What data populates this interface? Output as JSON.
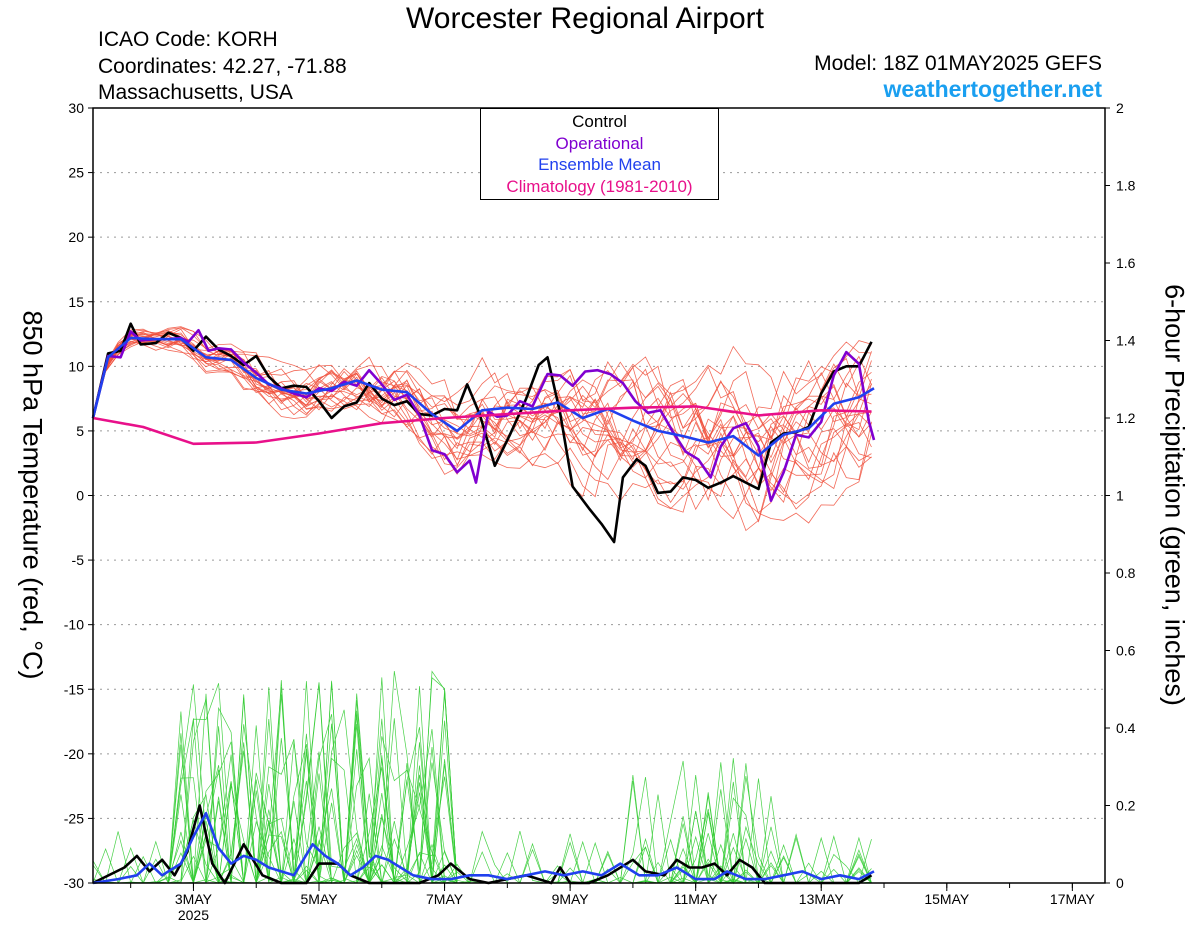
{
  "header": {
    "title": "Worcester Regional Airport",
    "icao": "ICAO Code: KORH",
    "coordinates": "Coordinates: 42.27, -71.88",
    "region": "Massachusetts, USA",
    "model": "Model: 18Z 01MAY2025 GEFS",
    "site": "weathertogether.net"
  },
  "colors": {
    "control": "#000000",
    "operational": "#8000d0",
    "ensemble_mean": "#2040ee",
    "climatology": "#e8108a",
    "members_temp": "#f0503c",
    "members_precip": "#33cc33",
    "site": "#1a9ff0"
  },
  "chart_data": {
    "type": "line",
    "title": "Worcester Regional Airport",
    "xlabel": "",
    "ylabel": "850 hPa Temperature (red, °C)",
    "y2label": "6-hour Precipitation (green, inches)",
    "x_ticks": [
      {
        "t": 0.8,
        "label": "3MAY",
        "sub": "2025"
      },
      {
        "t": 1.8,
        "label": "5MAY"
      },
      {
        "t": 2.8,
        "label": "7MAY"
      },
      {
        "t": 3.8,
        "label": "9MAY"
      },
      {
        "t": 4.8,
        "label": "11MAY"
      },
      {
        "t": 5.8,
        "label": "13MAY"
      },
      {
        "t": 6.8,
        "label": "15MAY"
      },
      {
        "t": 7.8,
        "label": "17MAY"
      }
    ],
    "x_range": [
      0,
      8.06
    ],
    "y_ticks": [
      30,
      25,
      20,
      15,
      10,
      5,
      0,
      -5,
      -10,
      -15,
      -20,
      -25,
      -30
    ],
    "ylim": [
      -30,
      30
    ],
    "y2_ticks": [
      2,
      1.8,
      1.6,
      1.4,
      1.2,
      1,
      0.8,
      0.6,
      0.4,
      0.2,
      0
    ],
    "y2lim": [
      0,
      2
    ],
    "grid": "dotted horizontal",
    "legend": {
      "position": "top-center",
      "entries": [
        {
          "label": "Control",
          "color": "#000000"
        },
        {
          "label": "Operational",
          "color": "#8000d0"
        },
        {
          "label": "Ensemble Mean",
          "color": "#2040ee"
        },
        {
          "label": "Climatology (1981-2010)",
          "color": "#e8108a"
        }
      ]
    },
    "series": [
      {
        "name": "Control",
        "axis": "temp",
        "color": "#000000",
        "points": [
          [
            0.0,
            6
          ],
          [
            0.12,
            11
          ],
          [
            0.22,
            11.2
          ],
          [
            0.3,
            13.3
          ],
          [
            0.38,
            11.7
          ],
          [
            0.5,
            11.8
          ],
          [
            0.6,
            12.6
          ],
          [
            0.7,
            12.2
          ],
          [
            0.8,
            11.2
          ],
          [
            0.9,
            12.3
          ],
          [
            1.0,
            11.3
          ],
          [
            1.1,
            10.8
          ],
          [
            1.2,
            10.1
          ],
          [
            1.3,
            10.8
          ],
          [
            1.4,
            9.2
          ],
          [
            1.5,
            8.3
          ],
          [
            1.6,
            8.5
          ],
          [
            1.7,
            8.4
          ],
          [
            1.8,
            7.3
          ],
          [
            1.9,
            6
          ],
          [
            2.0,
            6.9
          ],
          [
            2.1,
            7.2
          ],
          [
            2.2,
            8.7
          ],
          [
            2.3,
            7.5
          ],
          [
            2.4,
            7
          ],
          [
            2.5,
            7.3
          ],
          [
            2.6,
            6.3
          ],
          [
            2.7,
            6.2
          ],
          [
            2.8,
            6.7
          ],
          [
            2.9,
            6.6
          ],
          [
            2.98,
            8.6
          ],
          [
            3.08,
            6.3
          ],
          [
            3.2,
            2.3
          ],
          [
            3.32,
            4.7
          ],
          [
            3.45,
            7.5
          ],
          [
            3.55,
            10.1
          ],
          [
            3.62,
            10.7
          ],
          [
            3.72,
            6.4
          ],
          [
            3.82,
            0.7
          ],
          [
            3.95,
            -1
          ],
          [
            4.05,
            -2.2
          ],
          [
            4.15,
            -3.6
          ],
          [
            4.22,
            1.4
          ],
          [
            4.33,
            2.8
          ],
          [
            4.4,
            2.3
          ],
          [
            4.5,
            0.2
          ],
          [
            4.6,
            0.3
          ],
          [
            4.7,
            1.4
          ],
          [
            4.8,
            1.2
          ],
          [
            4.9,
            0.6
          ],
          [
            5.0,
            1
          ],
          [
            5.1,
            1.5
          ],
          [
            5.2,
            1
          ],
          [
            5.3,
            0.5
          ],
          [
            5.4,
            4.1
          ],
          [
            5.5,
            4.8
          ],
          [
            5.6,
            4.9
          ],
          [
            5.7,
            5.3
          ],
          [
            5.8,
            7.9
          ],
          [
            5.9,
            9.6
          ],
          [
            6.0,
            10
          ],
          [
            6.1,
            10
          ],
          [
            6.2,
            11.9
          ]
        ]
      },
      {
        "name": "Operational",
        "axis": "temp",
        "color": "#8000d0",
        "points": [
          [
            0.0,
            6
          ],
          [
            0.12,
            10.8
          ],
          [
            0.22,
            10.7
          ],
          [
            0.3,
            12.7
          ],
          [
            0.38,
            12
          ],
          [
            0.5,
            12.1
          ],
          [
            0.6,
            12.1
          ],
          [
            0.7,
            12.2
          ],
          [
            0.76,
            11.9
          ],
          [
            0.84,
            12.8
          ],
          [
            0.92,
            11.2
          ],
          [
            1.0,
            11.4
          ],
          [
            1.1,
            11.3
          ],
          [
            1.2,
            10.3
          ],
          [
            1.3,
            9.5
          ],
          [
            1.4,
            8.6
          ],
          [
            1.5,
            8.3
          ],
          [
            1.6,
            7.9
          ],
          [
            1.7,
            7.6
          ],
          [
            1.8,
            8.3
          ],
          [
            1.9,
            8.1
          ],
          [
            2.0,
            8.8
          ],
          [
            2.1,
            8.5
          ],
          [
            2.2,
            9.7
          ],
          [
            2.3,
            8.6
          ],
          [
            2.4,
            7.4
          ],
          [
            2.5,
            7.8
          ],
          [
            2.6,
            6.2
          ],
          [
            2.7,
            3.5
          ],
          [
            2.8,
            3.2
          ],
          [
            2.9,
            1.8
          ],
          [
            3.0,
            2.7
          ],
          [
            3.05,
            1
          ],
          [
            3.15,
            6.5
          ],
          [
            3.22,
            6.1
          ],
          [
            3.3,
            6.2
          ],
          [
            3.4,
            7.3
          ],
          [
            3.5,
            6.9
          ],
          [
            3.62,
            9.4
          ],
          [
            3.72,
            9.3
          ],
          [
            3.82,
            8.5
          ],
          [
            3.92,
            9.6
          ],
          [
            4.02,
            9.7
          ],
          [
            4.12,
            9.4
          ],
          [
            4.22,
            8.7
          ],
          [
            4.32,
            7.3
          ],
          [
            4.42,
            6.4
          ],
          [
            4.52,
            6.6
          ],
          [
            4.62,
            4.9
          ],
          [
            4.72,
            3.4
          ],
          [
            4.82,
            2.8
          ],
          [
            4.92,
            1.4
          ],
          [
            5.0,
            3.8
          ],
          [
            5.1,
            5.2
          ],
          [
            5.2,
            5.6
          ],
          [
            5.3,
            3.8
          ],
          [
            5.4,
            -0.4
          ],
          [
            5.5,
            1.8
          ],
          [
            5.6,
            4.7
          ],
          [
            5.7,
            4.5
          ],
          [
            5.8,
            5.7
          ],
          [
            5.9,
            9.3
          ],
          [
            6.0,
            11.1
          ],
          [
            6.1,
            10.2
          ],
          [
            6.18,
            5.7
          ],
          [
            6.22,
            4.3
          ]
        ]
      },
      {
        "name": "Ensemble Mean",
        "axis": "temp",
        "color": "#2040ee",
        "points": [
          [
            0.0,
            6
          ],
          [
            0.12,
            10.7
          ],
          [
            0.3,
            12.2
          ],
          [
            0.5,
            12.1
          ],
          [
            0.7,
            12.1
          ],
          [
            0.9,
            10.7
          ],
          [
            1.1,
            10.5
          ],
          [
            1.3,
            9.1
          ],
          [
            1.5,
            8.2
          ],
          [
            1.7,
            7.9
          ],
          [
            1.9,
            8.3
          ],
          [
            2.1,
            8.9
          ],
          [
            2.3,
            8.2
          ],
          [
            2.5,
            8
          ],
          [
            2.7,
            6.3
          ],
          [
            2.9,
            5
          ],
          [
            3.1,
            6.6
          ],
          [
            3.3,
            6.8
          ],
          [
            3.5,
            6.7
          ],
          [
            3.7,
            7.2
          ],
          [
            3.9,
            6
          ],
          [
            4.1,
            6.7
          ],
          [
            4.3,
            5.8
          ],
          [
            4.5,
            5
          ],
          [
            4.7,
            4.6
          ],
          [
            4.9,
            4.1
          ],
          [
            5.1,
            4.6
          ],
          [
            5.3,
            3.1
          ],
          [
            5.5,
            4.7
          ],
          [
            5.7,
            5.2
          ],
          [
            5.9,
            7.1
          ],
          [
            6.1,
            7.6
          ],
          [
            6.22,
            8.3
          ]
        ]
      },
      {
        "name": "Climatology (1981-2010)",
        "axis": "temp",
        "color": "#e8108a",
        "points": [
          [
            0.0,
            6
          ],
          [
            0.4,
            5.3
          ],
          [
            0.8,
            4
          ],
          [
            1.3,
            4.1
          ],
          [
            1.8,
            4.8
          ],
          [
            2.3,
            5.6
          ],
          [
            2.8,
            6
          ],
          [
            3.3,
            6.3
          ],
          [
            3.8,
            6.6
          ],
          [
            4.3,
            6.8
          ],
          [
            4.8,
            6.9
          ],
          [
            5.3,
            6.2
          ],
          [
            5.8,
            6.6
          ],
          [
            6.2,
            6.5
          ]
        ]
      },
      {
        "name": "Control",
        "axis": "precip",
        "color": "#000000",
        "points": [
          [
            0.0,
            0
          ],
          [
            0.25,
            0.04
          ],
          [
            0.35,
            0.07
          ],
          [
            0.45,
            0.03
          ],
          [
            0.55,
            0.06
          ],
          [
            0.65,
            0.02
          ],
          [
            0.75,
            0.08
          ],
          [
            0.85,
            0.2
          ],
          [
            0.95,
            0.05
          ],
          [
            1.05,
            0
          ],
          [
            1.2,
            0.1
          ],
          [
            1.35,
            0.02
          ],
          [
            1.5,
            0
          ],
          [
            1.7,
            0
          ],
          [
            1.8,
            0.05
          ],
          [
            1.95,
            0.05
          ],
          [
            2.05,
            0.02
          ],
          [
            2.2,
            0
          ],
          [
            2.4,
            0
          ],
          [
            2.6,
            0
          ],
          [
            2.75,
            0.02
          ],
          [
            2.85,
            0.05
          ],
          [
            3.0,
            0.01
          ],
          [
            3.15,
            0
          ],
          [
            3.3,
            0.01
          ],
          [
            3.45,
            0.02
          ],
          [
            3.55,
            0.01
          ],
          [
            3.65,
            0
          ],
          [
            3.72,
            0.04
          ],
          [
            3.8,
            0
          ],
          [
            3.95,
            0
          ],
          [
            4.1,
            0.02
          ],
          [
            4.3,
            0.06
          ],
          [
            4.4,
            0.03
          ],
          [
            4.55,
            0.02
          ],
          [
            4.65,
            0.06
          ],
          [
            4.75,
            0.04
          ],
          [
            4.85,
            0.04
          ],
          [
            4.95,
            0.05
          ],
          [
            5.05,
            0.02
          ],
          [
            5.15,
            0.06
          ],
          [
            5.25,
            0.04
          ],
          [
            5.35,
            0
          ],
          [
            5.5,
            0
          ],
          [
            5.7,
            0
          ],
          [
            5.9,
            0
          ],
          [
            6.1,
            0
          ],
          [
            6.2,
            0.02
          ]
        ]
      },
      {
        "name": "Ensemble Mean",
        "axis": "precip",
        "color": "#2040ee",
        "points": [
          [
            0.0,
            0
          ],
          [
            0.2,
            0.01
          ],
          [
            0.35,
            0.02
          ],
          [
            0.45,
            0.05
          ],
          [
            0.55,
            0.02
          ],
          [
            0.7,
            0.05
          ],
          [
            0.8,
            0.12
          ],
          [
            0.9,
            0.18
          ],
          [
            1.0,
            0.09
          ],
          [
            1.1,
            0.05
          ],
          [
            1.2,
            0.07
          ],
          [
            1.3,
            0.06
          ],
          [
            1.4,
            0.04
          ],
          [
            1.5,
            0.03
          ],
          [
            1.6,
            0.02
          ],
          [
            1.75,
            0.1
          ],
          [
            1.85,
            0.07
          ],
          [
            1.95,
            0.05
          ],
          [
            2.05,
            0.02
          ],
          [
            2.15,
            0.04
          ],
          [
            2.25,
            0.07
          ],
          [
            2.35,
            0.06
          ],
          [
            2.45,
            0.04
          ],
          [
            2.55,
            0.02
          ],
          [
            2.7,
            0.01
          ],
          [
            2.85,
            0.01
          ],
          [
            3.0,
            0.02
          ],
          [
            3.15,
            0.02
          ],
          [
            3.3,
            0.01
          ],
          [
            3.45,
            0.02
          ],
          [
            3.6,
            0.03
          ],
          [
            3.75,
            0.02
          ],
          [
            3.9,
            0.03
          ],
          [
            4.05,
            0.02
          ],
          [
            4.2,
            0.05
          ],
          [
            4.35,
            0.02
          ],
          [
            4.5,
            0.02
          ],
          [
            4.65,
            0.04
          ],
          [
            4.8,
            0.01
          ],
          [
            4.95,
            0.01
          ],
          [
            5.05,
            0.03
          ],
          [
            5.2,
            0.01
          ],
          [
            5.35,
            0.01
          ],
          [
            5.5,
            0.02
          ],
          [
            5.65,
            0.03
          ],
          [
            5.8,
            0.01
          ],
          [
            5.95,
            0.02
          ],
          [
            6.1,
            0.01
          ],
          [
            6.22,
            0.03
          ]
        ]
      }
    ]
  }
}
